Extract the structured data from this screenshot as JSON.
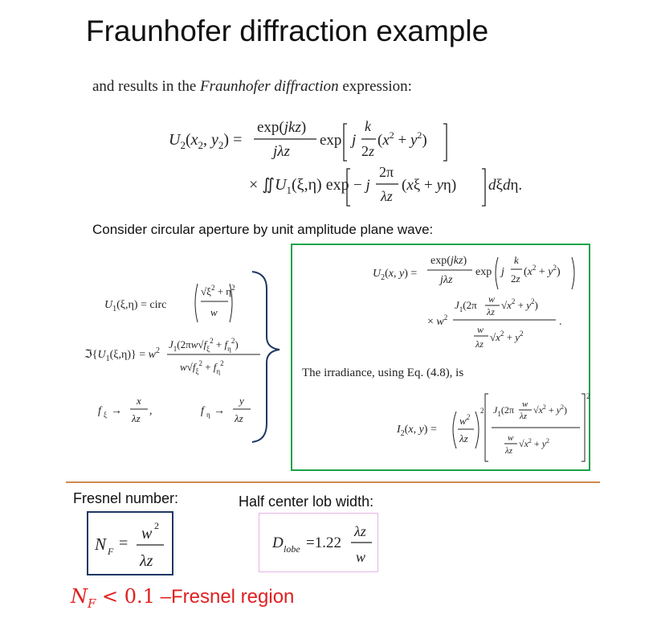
{
  "slide": {
    "title": "Fraunhofer diffraction example",
    "intro_prefix": "and results in the ",
    "intro_italic": "Fraunhofer diffraction",
    "intro_suffix": " expression:",
    "consider_text": "Consider circular aperture by unit amplitude plane wave:",
    "irradiance_text": "The irradiance, using Eq. (4.8), is",
    "fresnel_number_label": "Fresnel number:",
    "half_lobe_label": "Half center lob width:",
    "fresnel_region_math": "N",
    "fresnel_region_sub": "F",
    "fresnel_region_op": " < 0.1",
    "fresnel_region_text": " –Fresnel region",
    "accent_colors": {
      "result_box_border": "#1aa34a",
      "divider": "#d08a4c",
      "nf_box_border": "#1f3864",
      "dlobe_box_border": "#e5b3e5",
      "fresnel_region_text": "#e02020",
      "brace": "#1f3864"
    }
  }
}
